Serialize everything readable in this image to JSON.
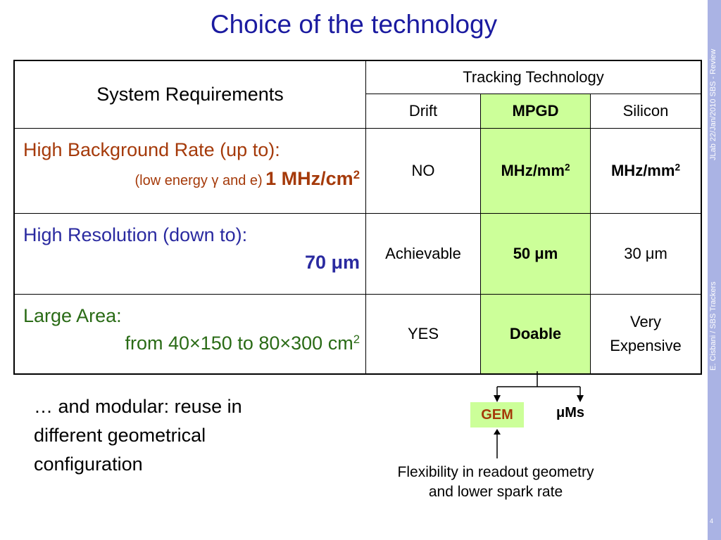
{
  "slide": {
    "title": "Choice of the technology",
    "side_top": "JLab 22/Jan/2010 SBS - Review",
    "side_bottom": "E. Cisbani / SBS Trackers",
    "page_number": "4",
    "colors": {
      "title": "#1b1ba0",
      "mpgd_fill": "#ccff99",
      "sidebar": "#aab3e4",
      "orange": "#a53a0a",
      "blue": "#2a2aa0",
      "green": "#2a6b16"
    }
  },
  "table": {
    "header_left": "System Requirements",
    "tracking_header": "Tracking Technology",
    "columns": [
      "Drift",
      "MPGD",
      "Silicon"
    ],
    "rows": [
      {
        "requirement": "High Background Rate (up to):",
        "detail_prefix": "(low energy γ and e)",
        "detail_value": "1 MHz/cm",
        "detail_sup": "2",
        "drift": "NO",
        "mpgd": "MHz/mm",
        "mpgd_sup": "2",
        "silicon": "MHz/mm",
        "silicon_sup": "2"
      },
      {
        "requirement": "High Resolution (down to):",
        "detail_value": "70 μm",
        "drift": "Achievable",
        "mpgd": "50 μm",
        "silicon": "30 μm"
      },
      {
        "requirement": "Large Area:",
        "detail_value": "from 40×150 to 80×300 cm",
        "detail_sup": "2",
        "drift": "YES",
        "mpgd": "Doable",
        "silicon_line1": "Very",
        "silicon_line2": "Expensive"
      }
    ]
  },
  "notes": {
    "modular": "… and modular: reuse in different geometrical configuration",
    "gem": "GEM",
    "ums": "μMs",
    "flexibility_line1": "Flexibility in readout geometry",
    "flexibility_line2": "and lower spark rate"
  }
}
